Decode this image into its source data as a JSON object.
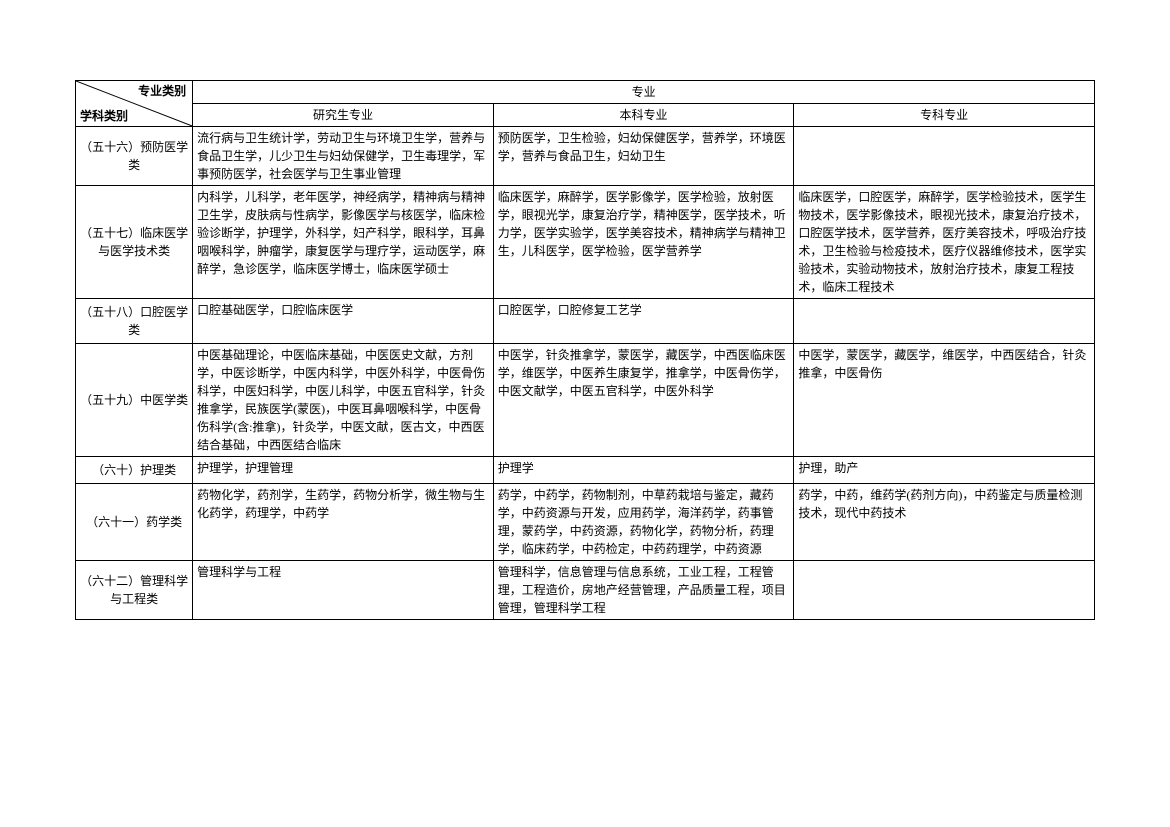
{
  "header": {
    "diag_top": "专业类别",
    "diag_bottom": "学科类别",
    "main": "专业",
    "sub1": "研究生专业",
    "sub2": "本科专业",
    "sub3": "专科专业"
  },
  "rows": [
    {
      "category": "（五十六）预防医学类",
      "col1": "流行病与卫生统计学，劳动卫生与环境卫生学，营养与食品卫生学，儿少卫生与妇幼保健学，卫生毒理学，军事预防医学，社会医学与卫生事业管理",
      "col2": "预防医学，卫生检验，妇幼保健医学，营养学，环境医学，营养与食品卫生，妇幼卫生",
      "col3": ""
    },
    {
      "category": "（五十七）临床医学与医学技术类",
      "col1": "内科学，儿科学，老年医学，神经病学，精神病与精神卫生学，皮肤病与性病学，影像医学与核医学，临床检验诊断学，护理学，外科学，妇产科学，眼科学，耳鼻咽喉科学，肿瘤学，康复医学与理疗学，运动医学，麻醉学，急诊医学，临床医学博士，临床医学硕士",
      "col2": "临床医学，麻醉学，医学影像学，医学检验，放射医学，眼视光学，康复治疗学，精神医学，医学技术，听力学，医学实验学，医学美容技术，精神病学与精神卫生，儿科医学，医学检验，医学营养学",
      "col3": "临床医学，口腔医学，麻醉学，医学检验技术，医学生物技术，医学影像技术，眼视光技术，康复治疗技术，口腔医学技术，医学营养，医疗美容技术，呼吸治疗技术，卫生检验与检疫技术，医疗仪器维修技术，医学实验技术，实验动物技术，放射治疗技术，康复工程技术，临床工程技术"
    },
    {
      "category": "（五十八）口腔医学类",
      "col1": "口腔基础医学，口腔临床医学",
      "col2": "口腔医学，口腔修复工艺学",
      "col3": ""
    },
    {
      "category": "（五十九）中医学类",
      "col1": "中医基础理论，中医临床基础，中医医史文献，方剂学，中医诊断学，中医内科学，中医外科学，中医骨伤科学，中医妇科学，中医儿科学，中医五官科学，针灸推拿学，民族医学(蒙医)，中医耳鼻咽喉科学，中医骨伤科学(含:推拿)，针灸学，中医文献，医古文，中西医结合基础，中西医结合临床",
      "col2": "中医学，针灸推拿学，蒙医学，藏医学，中西医临床医学，维医学，中医养生康复学，推拿学，中医骨伤学，中医文献学，中医五官科学，中医外科学",
      "col3": "中医学，蒙医学，藏医学，维医学，中西医结合，针灸推拿，中医骨伤"
    },
    {
      "category": "（六十）护理类",
      "col1": "护理学，护理管理",
      "col2": "护理学",
      "col3": "护理，助产"
    },
    {
      "category": "（六十一）药学类",
      "col1": "药物化学，药剂学，生药学，药物分析学，微生物与生化药学，药理学，中药学",
      "col2": "药学，中药学，药物制剂，中草药栽培与鉴定，藏药学，中药资源与开发，应用药学，海洋药学，药事管理，蒙药学，中药资源，药物化学，药物分析，药理学，临床药学，中药检定，中药药理学，中药资源",
      "col3": "药学，中药，维药学(药剂方向)，中药鉴定与质量检测技术，现代中药技术"
    },
    {
      "category": "（六十二）管理科学与工程类",
      "col1": "管理科学与工程",
      "col2": "管理科学，信息管理与信息系统，工业工程，工程管理，工程造价，房地产经营管理，产品质量工程，项目管理，管理科学工程",
      "col3": ""
    }
  ]
}
